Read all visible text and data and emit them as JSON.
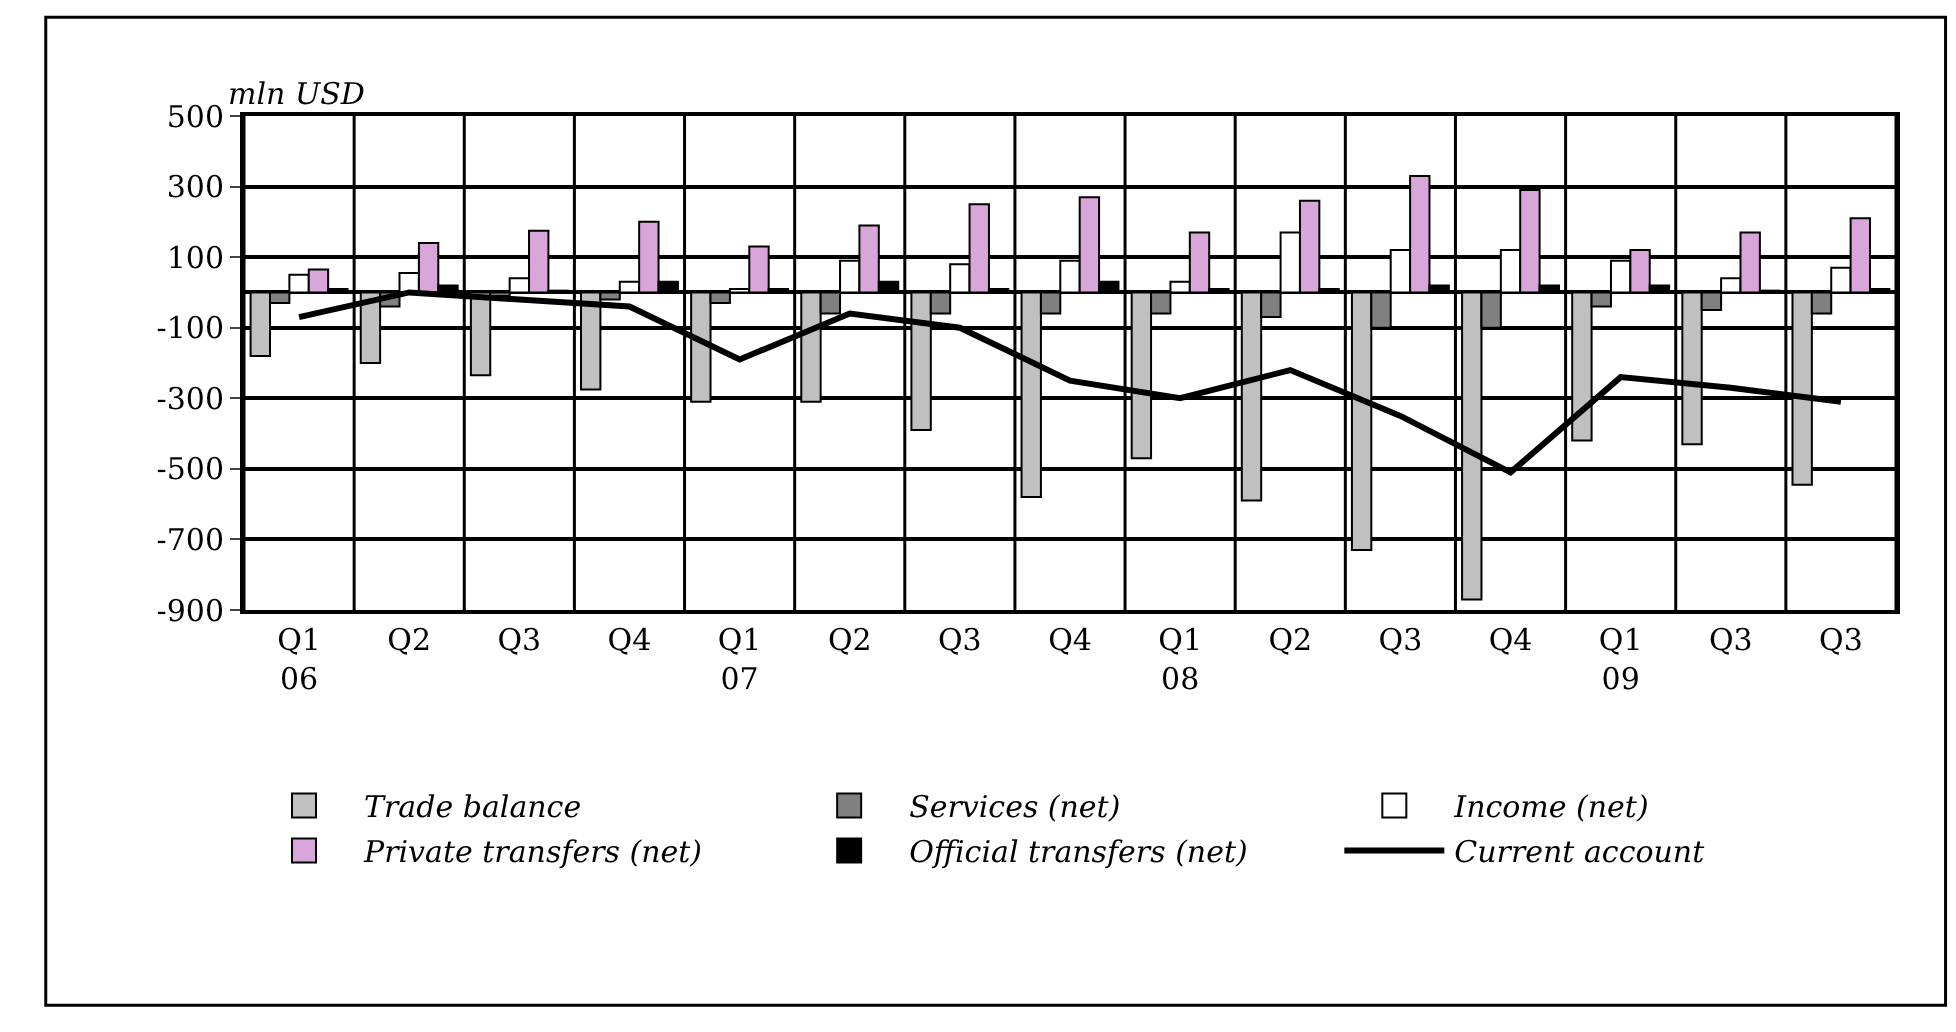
{
  "chart_data": {
    "type": "bar",
    "ylabel": "mln USD",
    "categories": [
      "Q1\n06",
      "Q2",
      "Q3",
      "Q4",
      "Q1\n07",
      "Q2",
      "Q3",
      "Q4",
      "Q1\n08",
      "Q2",
      "Q3",
      "Q4",
      "Q1\n09",
      "Q3",
      "Q3"
    ],
    "series": [
      {
        "name": "Trade balance",
        "color": "#c0c0c0",
        "values": [
          -180,
          -200,
          -235,
          -275,
          -310,
          -310,
          -390,
          -580,
          -470,
          -590,
          -730,
          -870,
          -420,
          -430,
          -545
        ]
      },
      {
        "name": "Services (net)",
        "color": "#808080",
        "values": [
          -30,
          -40,
          -10,
          -20,
          -30,
          -60,
          -60,
          -60,
          -60,
          -70,
          -100,
          -100,
          -40,
          -50,
          -60
        ]
      },
      {
        "name": "Income (net)",
        "color": "#ffffff",
        "values": [
          50,
          55,
          40,
          30,
          10,
          90,
          80,
          90,
          30,
          170,
          120,
          120,
          90,
          40,
          70
        ]
      },
      {
        "name": "Private transfers (net)",
        "color": "#d9a6d9",
        "values": [
          65,
          140,
          175,
          200,
          130,
          190,
          250,
          270,
          170,
          260,
          330,
          290,
          120,
          170,
          210
        ]
      },
      {
        "name": "Official transfers (net)",
        "color": "#000000",
        "values": [
          10,
          20,
          5,
          30,
          10,
          30,
          10,
          30,
          10,
          10,
          20,
          20,
          20,
          5,
          10
        ]
      },
      {
        "name": "Current account",
        "type": "line",
        "color": "#000000",
        "values": [
          -70,
          0,
          -20,
          -40,
          -190,
          -60,
          -100,
          -250,
          -300,
          -220,
          -350,
          -510,
          -240,
          -270,
          -310
        ]
      }
    ],
    "ylim": [
      -900,
      500
    ],
    "yticks": [
      -900,
      -700,
      -500,
      -300,
      -100,
      100,
      300,
      500
    ],
    "grid": true,
    "legend": "bottom",
    "marker": "none",
    "line_style": "solid"
  }
}
